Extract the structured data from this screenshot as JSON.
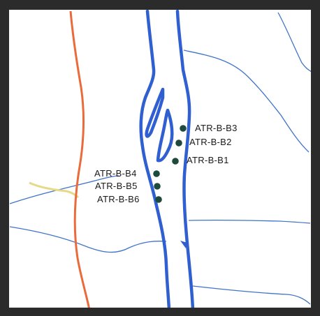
{
  "map": {
    "colors": {
      "frame": "#2b2b2b",
      "river": "#2f5fd0",
      "stream": "#3f74c9",
      "road": "#ea6a3a",
      "path": "#e7d98a",
      "well": "#1d4a3c"
    },
    "stations": [
      {
        "id": "ATR-B-B3",
        "label": "ATR-B-B3"
      },
      {
        "id": "ATR-B-B2",
        "label": "ATR-B-B2"
      },
      {
        "id": "ATR-B-B1",
        "label": "ATR-B-B1"
      },
      {
        "id": "ATR-B-B4",
        "label": "ATR-B-B4"
      },
      {
        "id": "ATR-B-B5",
        "label": "ATR-B-B5"
      },
      {
        "id": "ATR-B-B6",
        "label": "ATR-B-B6"
      }
    ]
  }
}
